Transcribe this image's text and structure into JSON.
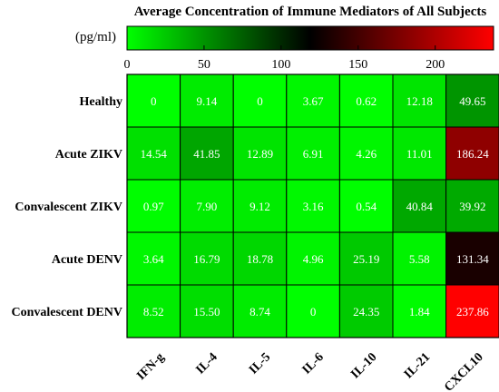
{
  "chart_data": {
    "type": "heatmap",
    "title": "Average Concentration of Immune Mediators of All Subjects",
    "unit": "(pg/ml)",
    "colorbar": {
      "min": 0,
      "max": 237.86,
      "ticks": [
        0,
        50,
        100,
        150,
        200
      ],
      "colors": [
        "#00ff00",
        "#000000",
        "#ff0000"
      ],
      "mid": 120
    },
    "rows": [
      "Healthy",
      "Acute ZIKV",
      "Convalescent ZIKV",
      "Acute DENV",
      "Convalescent DENV"
    ],
    "columns": [
      "IFN-g",
      "IL-4",
      "IL-5",
      "IL-6",
      "IL-10",
      "IL-21",
      "CXCL10"
    ],
    "values": [
      [
        0,
        9.14,
        0,
        3.67,
        0.62,
        12.18,
        49.65
      ],
      [
        14.54,
        41.85,
        12.89,
        6.91,
        4.26,
        11.01,
        186.24
      ],
      [
        0.97,
        7.9,
        9.12,
        3.16,
        0.54,
        40.84,
        39.92
      ],
      [
        3.64,
        16.79,
        18.78,
        4.96,
        25.19,
        5.58,
        131.34
      ],
      [
        8.52,
        15.5,
        8.74,
        0,
        24.35,
        1.84,
        237.86
      ]
    ],
    "labels": [
      [
        "0",
        "9.14",
        "0",
        "3.67",
        "0.62",
        "12.18",
        "49.65"
      ],
      [
        "14.54",
        "41.85",
        "12.89",
        "6.91",
        "4.26",
        "11.01",
        "186.24"
      ],
      [
        "0.97",
        "7.90",
        "9.12",
        "3.16",
        "0.54",
        "40.84",
        "39.92"
      ],
      [
        "3.64",
        "16.79",
        "18.78",
        "4.96",
        "25.19",
        "5.58",
        "131.34"
      ],
      [
        "8.52",
        "15.50",
        "8.74",
        "0",
        "24.35",
        "1.84",
        "237.86"
      ]
    ]
  }
}
